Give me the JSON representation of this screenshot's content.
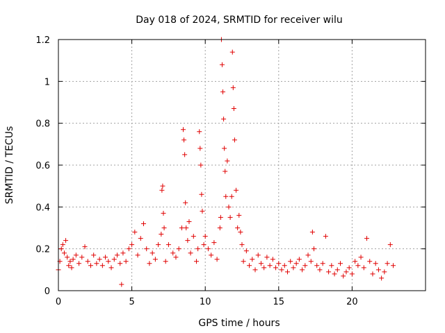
{
  "chart_data": {
    "type": "scatter",
    "title": "Day 018 of 2024, SRMTID for receiver wilu",
    "xlabel": "GPS time / hours",
    "ylabel": "SRMTID / TECUs",
    "xlim": [
      0,
      25
    ],
    "ylim": [
      0,
      1.2
    ],
    "xticks": [
      0,
      5,
      10,
      15,
      20
    ],
    "xtick_labels": [
      "0",
      "5",
      "10",
      "15",
      "20"
    ],
    "yticks": [
      0,
      0.2,
      0.4,
      0.6,
      0.8,
      1.0,
      1.2
    ],
    "ytick_labels": [
      "0",
      "0.2",
      "0.4",
      "0.6",
      "0.8",
      "1",
      "1.2"
    ],
    "grid": true,
    "marker": "+",
    "color": "#e00000",
    "series": [
      {
        "name": "SRMTID",
        "x": [
          0.0,
          0.1,
          0.2,
          0.3,
          0.4,
          0.5,
          0.6,
          0.7,
          0.8,
          0.9,
          1.0,
          1.2,
          1.4,
          1.6,
          1.8,
          2.0,
          2.2,
          2.4,
          2.6,
          2.8,
          3.0,
          3.2,
          3.4,
          3.6,
          3.8,
          4.0,
          4.2,
          4.3,
          4.4,
          4.6,
          4.8,
          5.0,
          5.2,
          5.4,
          5.6,
          5.8,
          6.0,
          6.2,
          6.4,
          6.6,
          6.8,
          7.0,
          7.05,
          7.1,
          7.15,
          7.2,
          7.3,
          7.5,
          7.8,
          8.0,
          8.2,
          8.4,
          8.5,
          8.55,
          8.6,
          8.65,
          8.7,
          8.8,
          8.9,
          9.0,
          9.2,
          9.4,
          9.5,
          9.6,
          9.65,
          9.7,
          9.75,
          9.8,
          9.9,
          10.0,
          10.2,
          10.4,
          10.6,
          10.8,
          11.0,
          11.05,
          11.1,
          11.15,
          11.2,
          11.25,
          11.3,
          11.35,
          11.4,
          11.5,
          11.6,
          11.7,
          11.8,
          11.85,
          11.9,
          11.95,
          12.0,
          12.1,
          12.2,
          12.3,
          12.4,
          12.5,
          12.6,
          12.8,
          13.0,
          13.2,
          13.4,
          13.6,
          13.8,
          14.0,
          14.2,
          14.4,
          14.6,
          14.8,
          15.0,
          15.2,
          15.4,
          15.6,
          15.8,
          16.0,
          16.2,
          16.4,
          16.6,
          16.8,
          17.0,
          17.2,
          17.3,
          17.4,
          17.6,
          17.8,
          18.0,
          18.2,
          18.4,
          18.6,
          18.8,
          19.0,
          19.2,
          19.4,
          19.6,
          19.8,
          20.0,
          20.2,
          20.4,
          20.6,
          20.8,
          21.0,
          21.2,
          21.4,
          21.6,
          21.8,
          22.0,
          22.2,
          22.4,
          22.6,
          22.8
        ],
        "y": [
          0.1,
          0.14,
          0.2,
          0.22,
          0.18,
          0.24,
          0.16,
          0.12,
          0.14,
          0.11,
          0.15,
          0.17,
          0.13,
          0.16,
          0.21,
          0.14,
          0.12,
          0.17,
          0.13,
          0.15,
          0.12,
          0.16,
          0.14,
          0.11,
          0.15,
          0.17,
          0.13,
          0.03,
          0.18,
          0.14,
          0.2,
          0.22,
          0.28,
          0.17,
          0.25,
          0.32,
          0.2,
          0.13,
          0.18,
          0.15,
          0.22,
          0.27,
          0.48,
          0.5,
          0.37,
          0.3,
          0.14,
          0.22,
          0.18,
          0.16,
          0.2,
          0.3,
          0.77,
          0.72,
          0.65,
          0.42,
          0.3,
          0.24,
          0.33,
          0.18,
          0.26,
          0.14,
          0.2,
          0.76,
          0.68,
          0.6,
          0.46,
          0.38,
          0.22,
          0.26,
          0.2,
          0.17,
          0.23,
          0.15,
          0.3,
          0.35,
          1.2,
          1.08,
          0.95,
          0.82,
          0.68,
          0.57,
          0.45,
          0.62,
          0.4,
          0.35,
          0.45,
          1.14,
          0.97,
          0.87,
          0.72,
          0.48,
          0.3,
          0.36,
          0.28,
          0.22,
          0.14,
          0.19,
          0.12,
          0.15,
          0.1,
          0.17,
          0.13,
          0.11,
          0.16,
          0.12,
          0.15,
          0.11,
          0.13,
          0.1,
          0.12,
          0.09,
          0.14,
          0.11,
          0.13,
          0.15,
          0.1,
          0.12,
          0.17,
          0.14,
          0.28,
          0.2,
          0.12,
          0.1,
          0.13,
          0.26,
          0.09,
          0.12,
          0.08,
          0.1,
          0.13,
          0.07,
          0.09,
          0.11,
          0.08,
          0.14,
          0.12,
          0.16,
          0.11,
          0.25,
          0.14,
          0.08,
          0.13,
          0.1,
          0.06,
          0.09,
          0.13,
          0.22,
          0.12
        ]
      }
    ]
  }
}
